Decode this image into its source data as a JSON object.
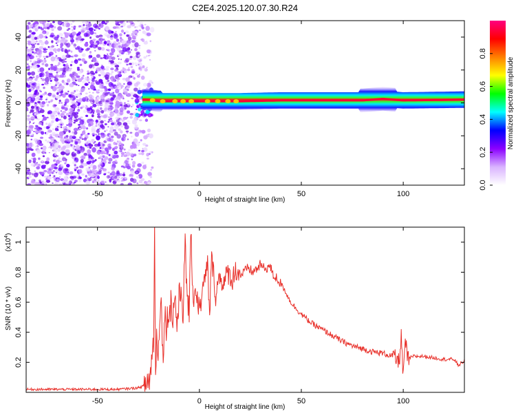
{
  "title": "C2E4.2025.120.07.30.R24",
  "chart_data": [
    {
      "type": "heatmap",
      "xlabel": "Height of straight line (km)",
      "ylabel": "Frequency (Hz)",
      "xlim": [
        -85,
        130
      ],
      "ylim": [
        -50,
        50
      ],
      "xticks": [
        -50,
        0,
        50,
        100
      ],
      "yticks": [
        -40,
        -20,
        0,
        20,
        40
      ],
      "colorbar": {
        "label": "Normalized spectral amplitude",
        "range": [
          0,
          1
        ],
        "ticks": [
          0.0,
          0.2,
          0.4,
          0.6,
          0.8
        ],
        "tick_labels": [
          "0.0",
          "0.2",
          "0.4",
          "0.6",
          "0.8"
        ],
        "colormap": [
          "#ffffff",
          "#d9b3ff",
          "#8b00ff",
          "#0000ff",
          "#00ffff",
          "#00ff00",
          "#ffff00",
          "#ff8000",
          "#ff0000",
          "#ff0080"
        ]
      },
      "features": {
        "noise_region_x": [
          -85,
          -27
        ],
        "noise_color": "#7a1fe8",
        "band_center_hz": [
          [
            -28,
            2
          ],
          [
            -25,
            2
          ],
          [
            -20,
            1
          ],
          [
            0,
            1
          ],
          [
            20,
            1
          ],
          [
            40,
            1.5
          ],
          [
            60,
            1.5
          ],
          [
            80,
            1.5
          ],
          [
            90,
            2.5
          ],
          [
            100,
            1.5
          ],
          [
            130,
            2
          ]
        ]
      }
    },
    {
      "type": "line",
      "xlabel": "Height of straight line (km)",
      "ylabel": "SNR (10 * v/v)",
      "y_scale_label": "(x10",
      "y_scale_exponent": "4",
      "y_scale_suffix": ")",
      "xlim": [
        -85,
        130
      ],
      "ylim": [
        0,
        1.1
      ],
      "xticks": [
        -50,
        0,
        50,
        100
      ],
      "yticks": [
        0.2,
        0.4,
        0.6,
        0.8,
        1.0
      ],
      "ytick_labels": [
        "0.2",
        "0.4",
        "0.6",
        "0.8",
        "1"
      ],
      "line_color": "#e8302a",
      "series": [
        {
          "values_note": "",
          "x": [
            -85,
            -60,
            -40,
            -30,
            -26,
            -24,
            -22.5,
            -22,
            -21.5,
            -21,
            -20,
            -19,
            -18,
            -17,
            -16,
            -15,
            -14,
            -13,
            -12,
            -11,
            -10,
            -9,
            -8,
            -7,
            -6,
            -5,
            -4,
            -3,
            -2,
            -1,
            0,
            2,
            4,
            5,
            6,
            8,
            10,
            12,
            14,
            16,
            18,
            20,
            22,
            24,
            26,
            28,
            30,
            32,
            34,
            35,
            36,
            38,
            40,
            42,
            44,
            46,
            48,
            50,
            55,
            60,
            65,
            70,
            75,
            80,
            85,
            90,
            95,
            98,
            99,
            100,
            101,
            102,
            105,
            110,
            115,
            120,
            125,
            127,
            130
          ],
          "y": [
            0.02,
            0.02,
            0.02,
            0.03,
            0.05,
            0.12,
            0.35,
            1.1,
            0.1,
            0.35,
            0.3,
            0.7,
            0.25,
            0.5,
            0.45,
            0.55,
            0.6,
            0.5,
            0.65,
            0.45,
            0.6,
            0.7,
            0.55,
            0.95,
            0.65,
            0.55,
            1.05,
            0.6,
            0.7,
            0.62,
            0.55,
            0.7,
            0.85,
            0.5,
            0.9,
            0.65,
            0.78,
            0.72,
            0.8,
            0.75,
            0.82,
            0.78,
            0.8,
            0.83,
            0.8,
            0.82,
            0.85,
            0.82,
            0.84,
            0.83,
            0.78,
            0.76,
            0.72,
            0.68,
            0.62,
            0.58,
            0.55,
            0.52,
            0.46,
            0.42,
            0.38,
            0.34,
            0.31,
            0.29,
            0.27,
            0.26,
            0.24,
            0.2,
            0.38,
            0.09,
            0.36,
            0.22,
            0.24,
            0.24,
            0.23,
            0.22,
            0.22,
            0.18,
            0.21
          ]
        }
      ]
    }
  ]
}
